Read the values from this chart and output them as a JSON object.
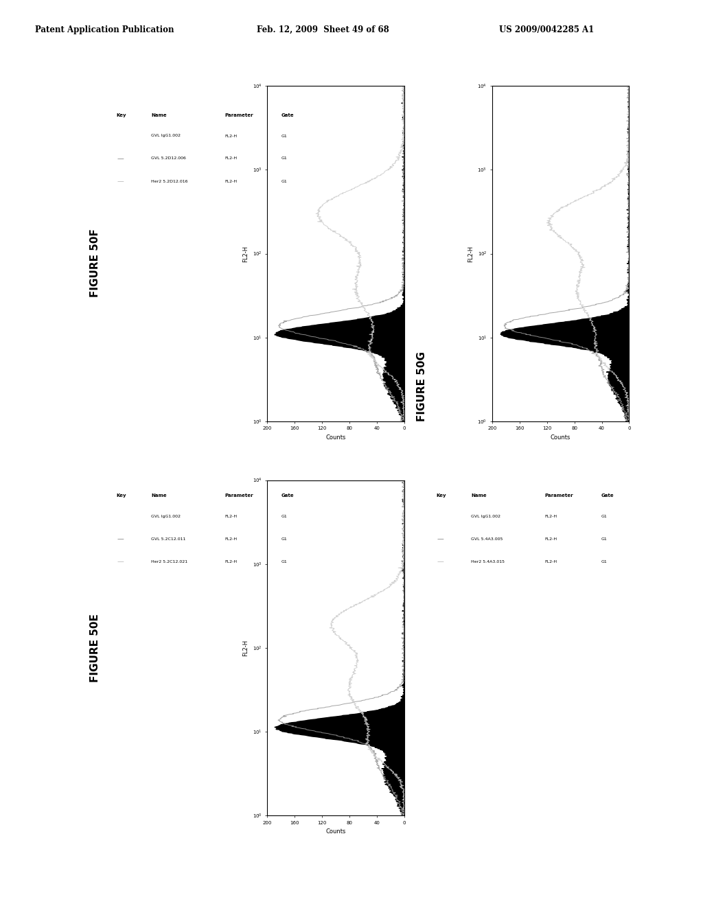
{
  "header_left": "Patent Application Publication",
  "header_center": "Feb. 12, 2009  Sheet 49 of 68",
  "header_right": "US 2009/0042285 A1",
  "figures": [
    {
      "title": "FIGURE 50E",
      "legend": {
        "names": [
          "GVL IgG1.002",
          "GVL 5.2C12.011",
          "Her2 5.2C12.021"
        ],
        "parameter": [
          "FL2-H",
          "FL2-H",
          "FL2-H"
        ],
        "gate": [
          "G1",
          "G1",
          "G1"
        ]
      }
    },
    {
      "title": "FIGURE 50F",
      "legend": {
        "names": [
          "GVL IgG1.002",
          "GVL 5.2D12.006",
          "Her2 5.2D12.016"
        ],
        "parameter": [
          "FL2-H",
          "FL2-H",
          "FL2-H"
        ],
        "gate": [
          "G1",
          "G1",
          "G1"
        ]
      }
    },
    {
      "title": "FIGURE 50G",
      "legend": {
        "names": [
          "GVL IgG1.002",
          "GVL 5.4A3.005",
          "Her2 5.4A3.015"
        ],
        "parameter": [
          "FL2-H",
          "FL2-H",
          "FL2-H"
        ],
        "gate": [
          "G1",
          "G1",
          "G1"
        ]
      }
    }
  ],
  "xlabel": "Counts",
  "ylabel": "FL2-H",
  "background_color": "#ffffff",
  "text_color": "#000000"
}
